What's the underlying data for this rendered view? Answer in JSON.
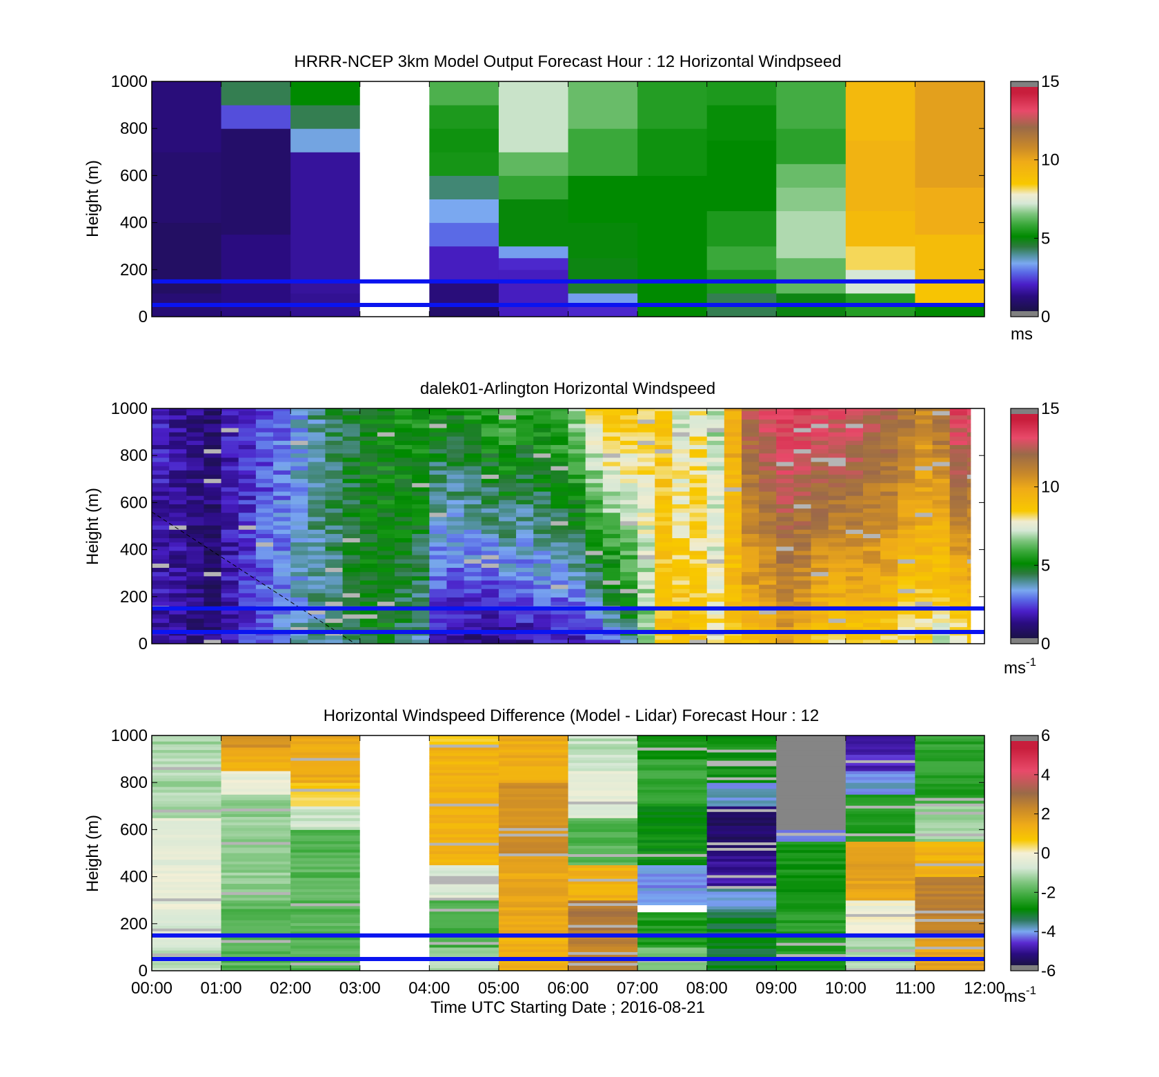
{
  "chart_data": [
    {
      "type": "heatmap",
      "title": "HRRR-NCEP 3km Model Output   Forecast Hour : 12 Horizontal Windpseed",
      "xlabel": "",
      "ylabel": "Height (m)",
      "yticks": [
        0,
        200,
        400,
        600,
        800,
        1000
      ],
      "ylim": [
        0,
        1000
      ],
      "xlim": [
        0,
        12
      ],
      "x_categories": [
        "00:00-01:00",
        "01:00-02:00",
        "02:00-03:00",
        "03:00-04:00",
        "04:00-05:00",
        "05:00-06:00",
        "06:00-07:00",
        "07:00-08:00",
        "08:00-09:00",
        "09:00-10:00",
        "10:00-11:00",
        "11:00-12:00"
      ],
      "colorbar": {
        "min": 0,
        "max": 15,
        "ticks": [
          "15",
          "10",
          "5",
          "0"
        ],
        "unit": "ms"
      },
      "reference_lines_m": [
        150,
        50
      ],
      "columns": [
        {
          "x0": 0,
          "x1": 1,
          "levels": [
            [
              0,
              100,
              0.8
            ],
            [
              100,
              400,
              0.5
            ],
            [
              400,
              700,
              0.7
            ],
            [
              700,
              1000,
              0.9
            ]
          ]
        },
        {
          "x0": 1,
          "x1": 2,
          "levels": [
            [
              0,
              350,
              1.0
            ],
            [
              350,
              800,
              0.6
            ],
            [
              800,
              900,
              2.3
            ],
            [
              900,
              1000,
              4.2
            ]
          ]
        },
        {
          "x0": 2,
          "x1": 3,
          "levels": [
            [
              0,
              100,
              1.2
            ],
            [
              100,
              700,
              1.3
            ],
            [
              700,
              800,
              3.3
            ],
            [
              800,
              900,
              4.2
            ],
            [
              900,
              1000,
              5.0
            ]
          ]
        },
        {
          "x0": 3,
          "x1": 4,
          "missing": true
        },
        {
          "x0": 4,
          "x1": 5,
          "levels": [
            [
              0,
              50,
              0.6
            ],
            [
              50,
              150,
              0.9
            ],
            [
              150,
              300,
              1.7
            ],
            [
              300,
              400,
              2.6
            ],
            [
              400,
              500,
              3.2
            ],
            [
              500,
              600,
              4.0
            ],
            [
              600,
              700,
              5.3
            ],
            [
              700,
              800,
              5.2
            ],
            [
              800,
              900,
              5.4
            ],
            [
              900,
              1000,
              6.0
            ]
          ]
        },
        {
          "x0": 5,
          "x1": 6,
          "levels": [
            [
              0,
              200,
              1.7
            ],
            [
              200,
              250,
              1.9
            ],
            [
              250,
              300,
              3.1
            ],
            [
              300,
              500,
              4.9
            ],
            [
              500,
              600,
              5.7
            ],
            [
              600,
              700,
              6.2
            ],
            [
              700,
              1000,
              7.1
            ]
          ]
        },
        {
          "x0": 6,
          "x1": 7,
          "levels": [
            [
              0,
              50,
              1.9
            ],
            [
              50,
              100,
              3.1
            ],
            [
              100,
              150,
              4.5
            ],
            [
              150,
              250,
              4.8
            ],
            [
              250,
              400,
              4.9
            ],
            [
              400,
              600,
              5.0
            ],
            [
              600,
              800,
              5.8
            ],
            [
              800,
              1000,
              6.3
            ]
          ]
        },
        {
          "x0": 7,
          "x1": 8,
          "levels": [
            [
              0,
              400,
              5.0
            ],
            [
              400,
              600,
              5.0
            ],
            [
              600,
              800,
              5.2
            ],
            [
              800,
              1000,
              5.5
            ]
          ]
        },
        {
          "x0": 8,
          "x1": 9,
          "levels": [
            [
              0,
              100,
              4.2
            ],
            [
              100,
              200,
              5.4
            ],
            [
              200,
              300,
              5.8
            ],
            [
              300,
              450,
              5.4
            ],
            [
              450,
              750,
              5.0
            ],
            [
              750,
              900,
              5.1
            ],
            [
              900,
              1000,
              5.4
            ]
          ]
        },
        {
          "x0": 9,
          "x1": 10,
          "levels": [
            [
              0,
              100,
              4.8
            ],
            [
              100,
              250,
              6.2
            ],
            [
              250,
              450,
              6.9
            ],
            [
              450,
              550,
              6.6
            ],
            [
              550,
              650,
              6.3
            ],
            [
              650,
              800,
              5.6
            ],
            [
              800,
              1000,
              5.9
            ]
          ]
        },
        {
          "x0": 10,
          "x1": 11,
          "levels": [
            [
              0,
              100,
              5.5
            ],
            [
              100,
              200,
              7.2
            ],
            [
              200,
              300,
              8.2
            ],
            [
              300,
              450,
              9.2
            ],
            [
              450,
              750,
              9.6
            ],
            [
              750,
              1000,
              9.3
            ]
          ]
        },
        {
          "x0": 11,
          "x1": 12,
          "levels": [
            [
              0,
              50,
              5.0
            ],
            [
              50,
              150,
              8.7
            ],
            [
              150,
              350,
              9.1
            ],
            [
              350,
              550,
              9.9
            ],
            [
              550,
              1000,
              10.3
            ]
          ]
        }
      ]
    },
    {
      "type": "heatmap",
      "title": "dalek01-Arlington  Horizontal Windspeed",
      "xlabel": "",
      "ylabel": "Height (m)",
      "yticks": [
        0,
        200,
        400,
        600,
        800,
        1000
      ],
      "ylim": [
        0,
        1000
      ],
      "xlim": [
        0,
        12
      ],
      "colorbar": {
        "min": 0,
        "max": 15,
        "ticks": [
          "15",
          "10",
          "5",
          "0"
        ],
        "unit": "ms",
        "unit_exp": "-1"
      },
      "reference_lines_m": [
        150,
        50
      ],
      "data_end_hour": 11.8,
      "time_hours": [
        0,
        0.25,
        0.5,
        0.75,
        1,
        1.25,
        1.5,
        1.75,
        2,
        2.25,
        2.5,
        2.75,
        3,
        3.25,
        3.5,
        3.75,
        4,
        4.25,
        4.5,
        4.75,
        5,
        5.25,
        5.5,
        5.75,
        6,
        6.25,
        6.5,
        6.75,
        7,
        7.25,
        7.5,
        7.75,
        8,
        8.25,
        8.5,
        8.75,
        9,
        9.25,
        9.5,
        9.75,
        10,
        10.25,
        10.5,
        10.75,
        11,
        11.25,
        11.5,
        11.75
      ],
      "lower_speed_ms": [
        1.4,
        1.3,
        1.0,
        0.8,
        1.5,
        2.0,
        2.6,
        3.0,
        3.4,
        3.6,
        4.0,
        4.2,
        4.6,
        4.8,
        4.2,
        3.6,
        1.2,
        1.0,
        0.8,
        0.7,
        0.9,
        1.2,
        1.5,
        1.5,
        1.5,
        2.0,
        2.5,
        3.8,
        6.2,
        8.8,
        9.2,
        8.7,
        8.1,
        8.6,
        9.2,
        9.4,
        10.2,
        9.4,
        8.7,
        8.3,
        8.5,
        8.5,
        8.3,
        7.6,
        7.8,
        7.1,
        7.6,
        8.3
      ],
      "upper_speed_ms": [
        1.7,
        1.3,
        1.0,
        0.8,
        1.6,
        1.9,
        2.2,
        2.6,
        3.2,
        3.8,
        4.2,
        4.6,
        4.9,
        5.0,
        5.2,
        5.4,
        5.0,
        5.1,
        5.5,
        5.8,
        6.2,
        5.5,
        5.7,
        6.1,
        6.8,
        8.1,
        9.1,
        8.8,
        8.4,
        8.7,
        7.3,
        7.9,
        6.8,
        10.0,
        12.5,
        13.2,
        13.7,
        13.9,
        13.6,
        13.5,
        13.4,
        12.8,
        12.6,
        12.0,
        11.2,
        12.0,
        13.6,
        13.1
      ]
    },
    {
      "type": "heatmap",
      "title": "Horizontal Windspeed Difference (Model - Lidar) Forecast Hour : 12",
      "xlabel": "Time UTC  Starting Date ; 2016-08-21",
      "ylabel": "Height (m)",
      "xticks": [
        "00:00",
        "01:00",
        "02:00",
        "03:00",
        "04:00",
        "05:00",
        "06:00",
        "07:00",
        "08:00",
        "09:00",
        "10:00",
        "11:00",
        "12:00"
      ],
      "yticks": [
        0,
        200,
        400,
        600,
        800,
        1000
      ],
      "ylim": [
        0,
        1000
      ],
      "xlim": [
        0,
        12
      ],
      "colorbar": {
        "min": -6,
        "max": 6,
        "ticks": [
          "6",
          "4",
          "2",
          "0",
          "-2",
          "-4",
          "-6"
        ],
        "unit": "ms",
        "unit_exp": "-1"
      },
      "reference_lines_m": [
        150,
        50
      ],
      "columns": [
        {
          "x0": 0,
          "x1": 1,
          "levels": [
            [
              0,
              100,
              -1.0
            ],
            [
              100,
              250,
              -0.6
            ],
            [
              250,
              450,
              -0.3
            ],
            [
              450,
              650,
              -0.5
            ],
            [
              650,
              1000,
              -1.2
            ]
          ]
        },
        {
          "x0": 1,
          "x1": 2,
          "levels": [
            [
              0,
              300,
              -2.0
            ],
            [
              300,
              750,
              -1.4
            ],
            [
              750,
              850,
              -0.3
            ],
            [
              850,
              950,
              1.4
            ],
            [
              950,
              1000,
              2.2
            ]
          ]
        },
        {
          "x0": 2,
          "x1": 3,
          "levels": [
            [
              0,
              600,
              -2.0
            ],
            [
              600,
              700,
              -0.8
            ],
            [
              700,
              800,
              0.6
            ],
            [
              800,
              1000,
              1.5
            ]
          ]
        },
        {
          "x0": 3,
          "x1": 4,
          "missing": true
        },
        {
          "x0": 4,
          "x1": 5,
          "levels": [
            [
              0,
              100,
              -1.2
            ],
            [
              100,
              300,
              -2.2
            ],
            [
              300,
              450,
              -0.6
            ],
            [
              450,
              950,
              1.3
            ],
            [
              950,
              1000,
              0.4
            ]
          ]
        },
        {
          "x0": 5,
          "x1": 6,
          "levels": [
            [
              0,
              150,
              1.3
            ],
            [
              150,
              500,
              1.6
            ],
            [
              500,
              800,
              2.2
            ],
            [
              800,
              1000,
              1.5
            ]
          ]
        },
        {
          "x0": 6,
          "x1": 7,
          "levels": [
            [
              0,
              150,
              2.6
            ],
            [
              150,
              300,
              2.8
            ],
            [
              300,
              450,
              1.3
            ],
            [
              450,
              650,
              -2.0
            ],
            [
              650,
              850,
              -0.5
            ],
            [
              850,
              1000,
              -1.0
            ]
          ]
        },
        {
          "x0": 7,
          "x1": 8,
          "levels": [
            [
              0,
              100,
              -1.6
            ],
            [
              100,
              250,
              -2.6
            ],
            [
              250,
              280,
              "gap"
            ],
            [
              280,
              450,
              -4.3
            ],
            [
              450,
              700,
              -2.9
            ],
            [
              700,
              900,
              -2.4
            ],
            [
              900,
              1000,
              -2.8
            ]
          ]
        },
        {
          "x0": 8,
          "x1": 9,
          "levels": [
            [
              0,
              250,
              -3.3
            ],
            [
              250,
              350,
              -4.0
            ],
            [
              350,
              500,
              -5.2
            ],
            [
              500,
              700,
              -5.7
            ],
            [
              700,
              800,
              -4.1
            ],
            [
              800,
              1000,
              -2.8
            ]
          ]
        },
        {
          "x0": 9,
          "x1": 10,
          "levels": [
            [
              0,
              300,
              -2.6
            ],
            [
              300,
              550,
              -2.8
            ],
            [
              550,
              600,
              -4.6
            ],
            [
              600,
              1000,
              "gray"
            ]
          ]
        },
        {
          "x0": 10,
          "x1": 11,
          "levels": [
            [
              0,
              150,
              -1.2
            ],
            [
              150,
              300,
              -0.2
            ],
            [
              300,
              550,
              1.7
            ],
            [
              550,
              750,
              -2.6
            ],
            [
              750,
              850,
              -4.2
            ],
            [
              850,
              1000,
              -5.0
            ]
          ]
        },
        {
          "x0": 11,
          "x1": 12,
          "levels": [
            [
              0,
              150,
              1.7
            ],
            [
              150,
              400,
              2.6
            ],
            [
              400,
              550,
              1.3
            ],
            [
              550,
              700,
              -1.3
            ],
            [
              700,
              1000,
              -2.5
            ]
          ]
        }
      ]
    }
  ]
}
